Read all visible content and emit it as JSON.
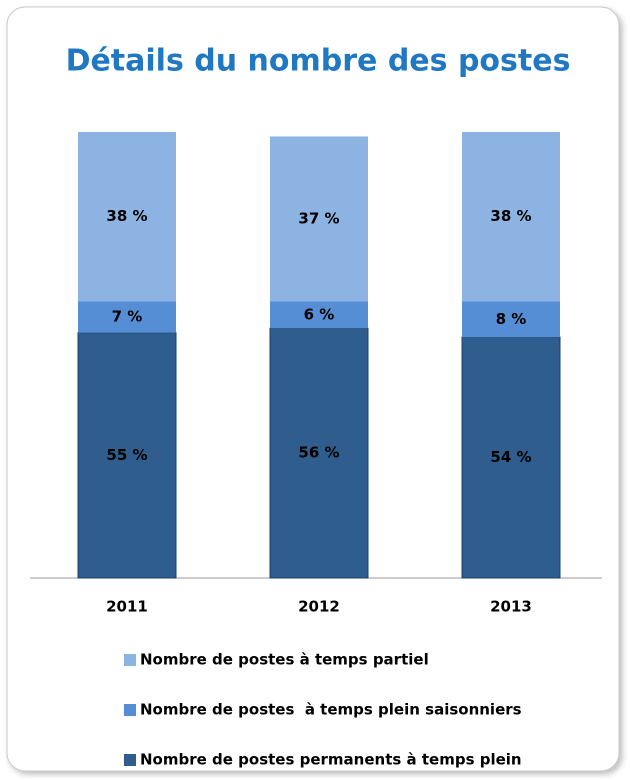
{
  "chart_data": {
    "type": "stacked_bar",
    "title": "Détails du nombre des postes",
    "categories": [
      "2011",
      "2012",
      "2013"
    ],
    "series": [
      {
        "name": "Nombre de postes permanents à temps plein",
        "color": "#2f5e8e",
        "values": [
          55,
          56,
          54
        ],
        "value_labels": [
          "55 %",
          "56 %",
          "54 %"
        ]
      },
      {
        "name": "Nombre de postes  à temps plein saisonniers",
        "color": "#558ed5",
        "values": [
          7,
          6,
          8
        ],
        "value_labels": [
          "7 %",
          "6 %",
          "8 %"
        ]
      },
      {
        "name": "Nombre de postes à temps partiel",
        "color": "#8db3e2",
        "values": [
          38,
          37,
          38
        ],
        "value_labels": [
          "38 %",
          "37 %",
          "38 %"
        ]
      }
    ],
    "ylim": [
      0,
      100
    ]
  }
}
